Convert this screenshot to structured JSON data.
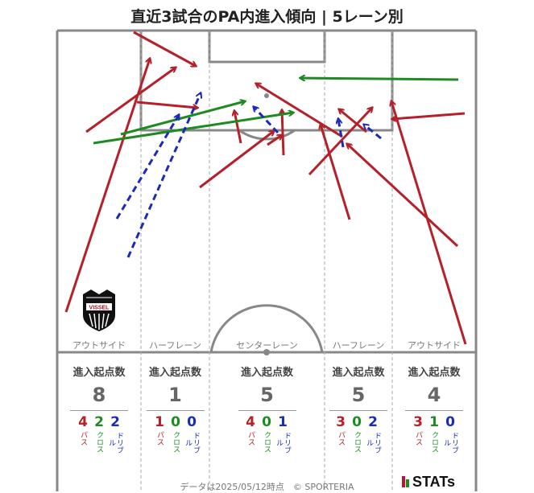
{
  "title": "直近3試合のPA内進入傾向 | 5レーン別",
  "colors": {
    "pass": "#b5202a",
    "cross": "#1e8a22",
    "dribble": "#1a2bb8",
    "pitch_line": "#888888"
  },
  "team_logo": {
    "text": "VISSEL",
    "icon": "vissel-kobe-crest-icon"
  },
  "lanes": [
    {
      "label": "アウトサイド",
      "stat_header": "進入起点数",
      "total": "8",
      "pass": "4",
      "cross": "2",
      "dribble": "2"
    },
    {
      "label": "ハーフレーン",
      "stat_header": "進入起点数",
      "total": "1",
      "pass": "1",
      "cross": "0",
      "dribble": "0"
    },
    {
      "label": "センターレーン",
      "stat_header": "進入起点数",
      "total": "5",
      "pass": "4",
      "cross": "0",
      "dribble": "1"
    },
    {
      "label": "ハーフレーン",
      "stat_header": "進入起点数",
      "total": "5",
      "pass": "3",
      "cross": "0",
      "dribble": "2"
    },
    {
      "label": "アウトサイド",
      "stat_header": "進入起点数",
      "total": "4",
      "pass": "3",
      "cross": "1",
      "dribble": "0"
    }
  ],
  "type_labels": {
    "pass": "パス",
    "cross": "クロス",
    "dribble": "ドリブル"
  },
  "footer": "データは2025/05/12時点　© SPORTERIA",
  "brand": "STATs"
}
